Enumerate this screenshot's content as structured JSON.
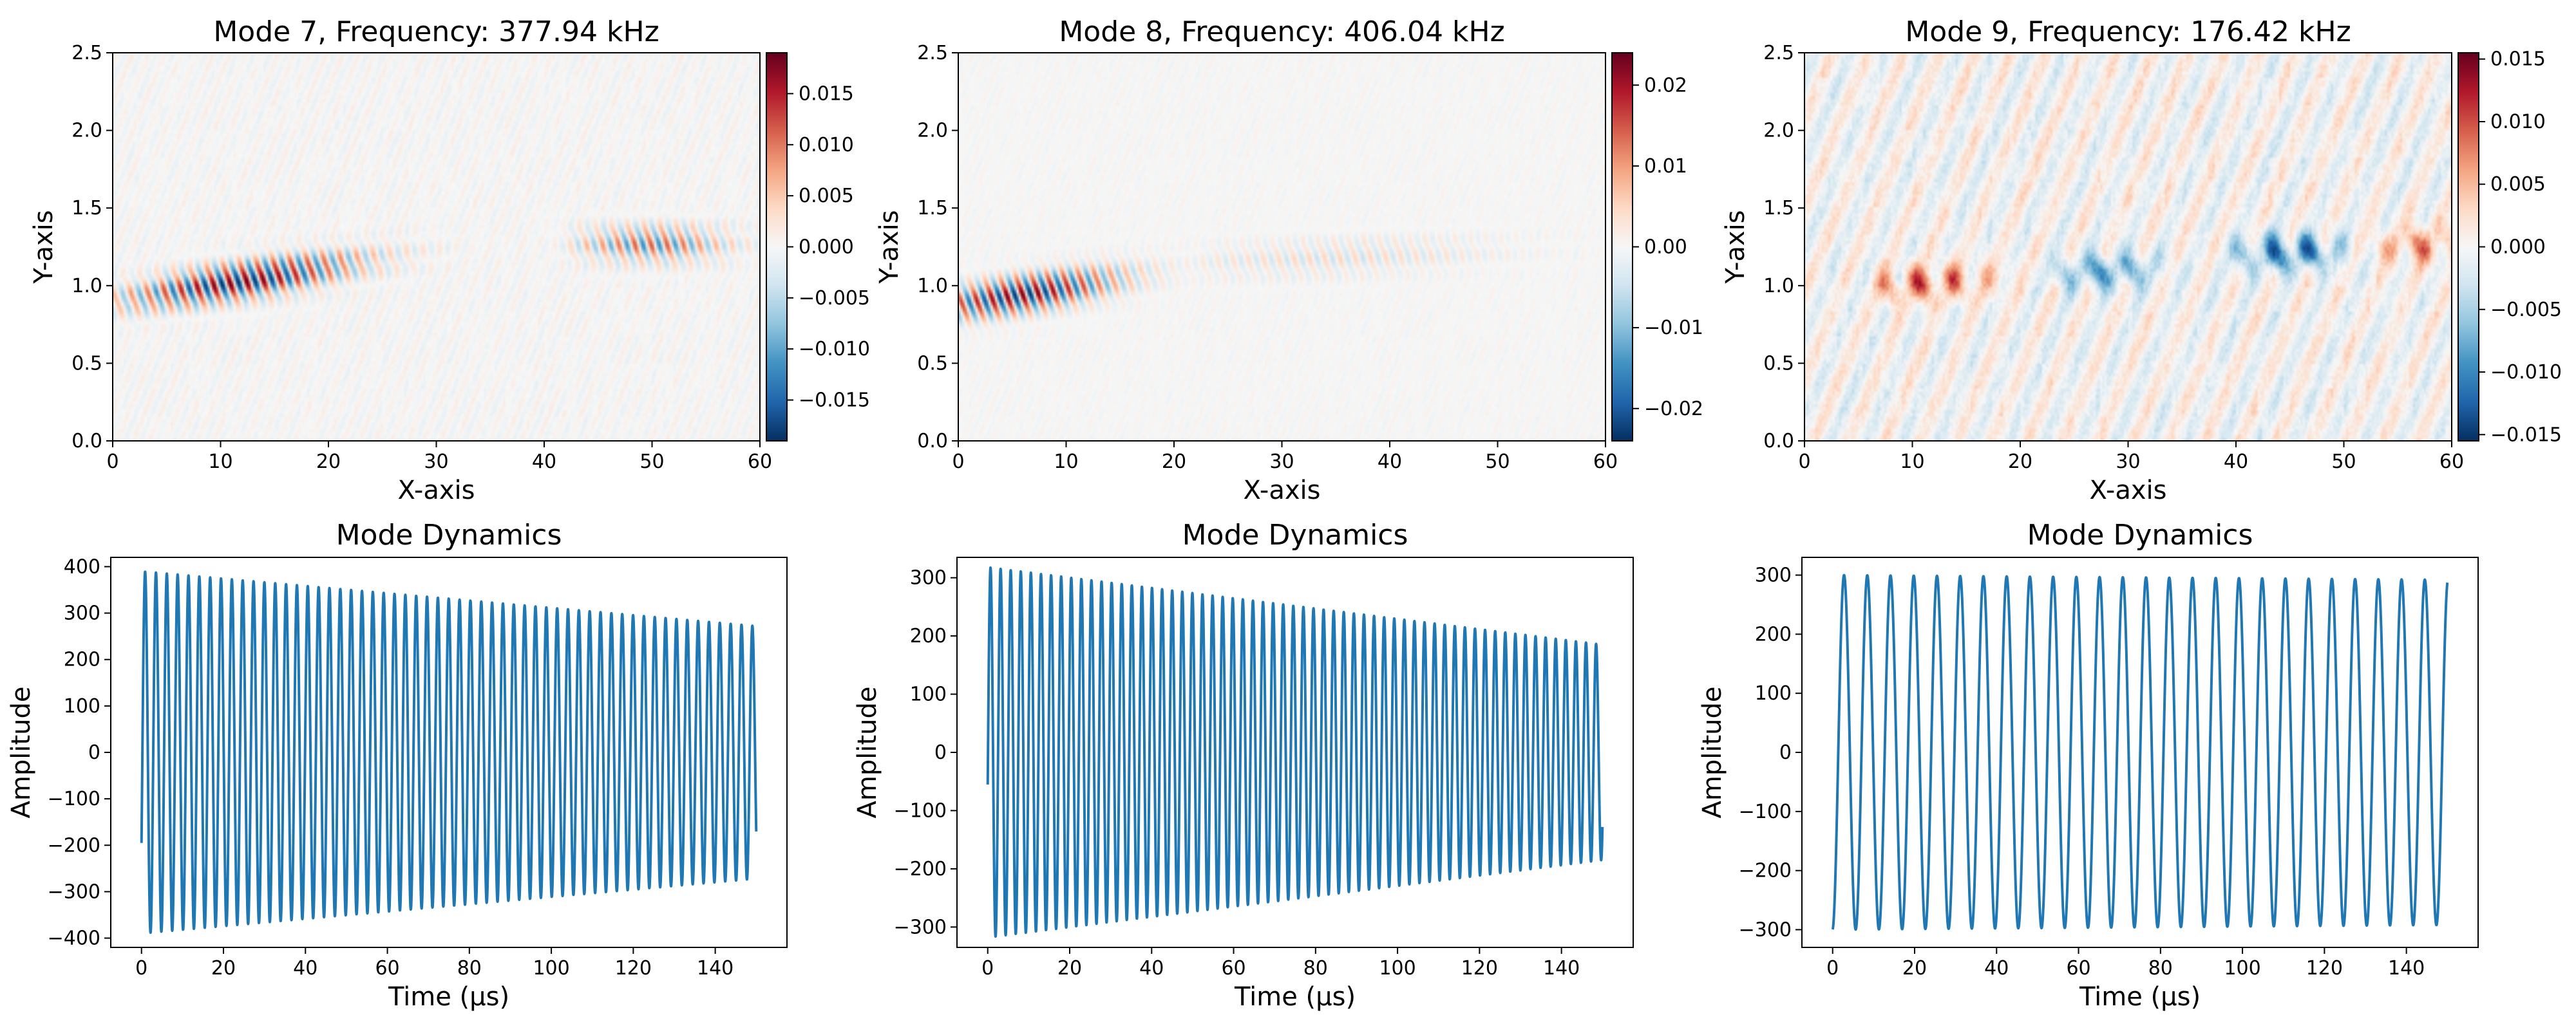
{
  "colors": {
    "line": "#1f77b4",
    "cmap_low": "#053061",
    "cmap_mid": "#f7f7f7",
    "cmap_high": "#67001f",
    "axes": "#000000",
    "background": "#ffffff"
  },
  "chart_data": [
    {
      "type": "heatmap",
      "title": "Mode 7, Frequency: 377.94 kHz",
      "xlabel": "X-axis",
      "ylabel": "Y-axis",
      "xlim": [
        0,
        60
      ],
      "ylim": [
        0,
        2.5
      ],
      "xticks": [
        "0",
        "10",
        "20",
        "30",
        "40",
        "50",
        "60"
      ],
      "yticks": [
        "0.0",
        "0.5",
        "1.0",
        "1.5",
        "2.0",
        "2.5"
      ],
      "colormap": "RdBu_r",
      "colorbar": {
        "range": [
          -0.019,
          0.019
        ],
        "ticks": [
          "0.015",
          "0.010",
          "0.005",
          "0.000",
          "−0.005",
          "−0.010",
          "−0.015"
        ],
        "tick_values": [
          0.015,
          0.01,
          0.005,
          0.0,
          -0.005,
          -0.01,
          -0.015
        ]
      },
      "pattern": {
        "bands": [
          {
            "x_start": 0,
            "x_end": 31,
            "y": 0.9,
            "y_slope": 0.011,
            "amp": 1.0,
            "peak_x": 12,
            "width": 11
          },
          {
            "x_start": 43,
            "x_end": 60,
            "y": 1.27,
            "y_slope": 0.0,
            "amp": 0.6,
            "peak_x": 50,
            "width": 7
          }
        ],
        "noise": 0.07,
        "wavelength": 1.5
      }
    },
    {
      "type": "heatmap",
      "title": "Mode 8, Frequency: 406.04 kHz",
      "xlabel": "X-axis",
      "ylabel": "Y-axis",
      "xlim": [
        0,
        60
      ],
      "ylim": [
        0,
        2.5
      ],
      "xticks": [
        "0",
        "10",
        "20",
        "30",
        "40",
        "50",
        "60"
      ],
      "yticks": [
        "0.0",
        "0.5",
        "1.0",
        "1.5",
        "2.0",
        "2.5"
      ],
      "colormap": "RdBu_r",
      "colorbar": {
        "range": [
          -0.024,
          0.024
        ],
        "ticks": [
          "0.02",
          "0.01",
          "0.00",
          "−0.01",
          "−0.02"
        ],
        "tick_values": [
          0.02,
          0.01,
          0.0,
          -0.01,
          -0.02
        ]
      },
      "pattern": {
        "bands": [
          {
            "x_start": 0,
            "x_end": 23,
            "y": 0.88,
            "y_slope": 0.011,
            "amp": 1.0,
            "peak_x": 6,
            "width": 9
          },
          {
            "x_start": 24,
            "x_end": 60,
            "y": 1.15,
            "y_slope": 0.003,
            "amp": 0.2,
            "peak_x": 35,
            "width": 14
          }
        ],
        "noise": 0.04,
        "wavelength": 1.4
      }
    },
    {
      "type": "heatmap",
      "title": "Mode 9, Frequency: 176.42 kHz",
      "xlabel": "X-axis",
      "ylabel": "Y-axis",
      "xlim": [
        0,
        60
      ],
      "ylim": [
        0,
        2.5
      ],
      "xticks": [
        "0",
        "10",
        "20",
        "30",
        "40",
        "50",
        "60"
      ],
      "yticks": [
        "0.0",
        "0.5",
        "1.0",
        "1.5",
        "2.0",
        "2.5"
      ],
      "colormap": "RdBu_r",
      "colorbar": {
        "range": [
          -0.0155,
          0.0155
        ],
        "ticks": [
          "0.015",
          "0.010",
          "0.005",
          "0.000",
          "−0.005",
          "−0.010",
          "−0.015"
        ],
        "tick_values": [
          0.015,
          0.01,
          0.005,
          0.0,
          -0.005,
          -0.01,
          -0.015
        ]
      },
      "pattern": {
        "bands": [
          {
            "x_start": 8,
            "x_end": 20,
            "y": 1.0,
            "y_slope": 0.004,
            "amp": 0.75,
            "peak_x": 11,
            "width": 6,
            "sign": 1
          },
          {
            "x_start": 23,
            "x_end": 33,
            "y": 1.08,
            "y_slope": 0.003,
            "amp": 0.75,
            "peak_x": 28,
            "width": 5,
            "sign": -1
          },
          {
            "x_start": 39,
            "x_end": 50,
            "y": 1.2,
            "y_slope": 0.002,
            "amp": 1.0,
            "peak_x": 45,
            "width": 5,
            "sign": -1
          },
          {
            "x_start": 50,
            "x_end": 60,
            "y": 1.25,
            "y_slope": 0.002,
            "amp": 0.6,
            "peak_x": 57,
            "width": 4,
            "sign": 1
          }
        ],
        "noise": 0.22,
        "wavelength": 3.3
      }
    },
    {
      "type": "line",
      "title": "Mode Dynamics",
      "xlabel": "Time (μs)",
      "ylabel": "Amplitude",
      "xlim": [
        -7.5,
        157.5
      ],
      "ylim": [
        -420,
        420
      ],
      "xticks": [
        0,
        20,
        40,
        60,
        80,
        100,
        120,
        140
      ],
      "yticks": [
        400,
        300,
        200,
        100,
        0,
        -100,
        -200,
        -300,
        -400
      ],
      "series": [
        {
          "t_start": 0,
          "t_end": 150,
          "frequency_mhz": 0.37794,
          "amplitude_start": 390,
          "amplitude_end": 272,
          "phase_deg": 240
        }
      ]
    },
    {
      "type": "line",
      "title": "Mode Dynamics",
      "xlabel": "Time (μs)",
      "ylabel": "Amplitude",
      "xlim": [
        -7.5,
        157.5
      ],
      "ylim": [
        -335,
        335
      ],
      "xticks": [
        0,
        20,
        40,
        60,
        80,
        100,
        120,
        140
      ],
      "yticks": [
        300,
        200,
        100,
        0,
        -100,
        -200,
        -300
      ],
      "series": [
        {
          "t_start": 0,
          "t_end": 150,
          "frequency_mhz": 0.40604,
          "amplitude_start": 318,
          "amplitude_end": 185,
          "phase_deg": 260
        }
      ]
    },
    {
      "type": "line",
      "title": "Mode Dynamics",
      "xlabel": "Time (μs)",
      "ylabel": "Amplitude",
      "xlim": [
        -7.5,
        157.5
      ],
      "ylim": [
        -330,
        330
      ],
      "xticks": [
        0,
        20,
        40,
        60,
        80,
        100,
        120,
        140
      ],
      "yticks": [
        300,
        200,
        100,
        0,
        -100,
        -200,
        -300
      ],
      "series": [
        {
          "t_start": 0,
          "t_end": 150,
          "frequency_mhz": 0.17642,
          "amplitude_start": 300,
          "amplitude_end": 292,
          "phase_deg": 183
        }
      ]
    }
  ]
}
